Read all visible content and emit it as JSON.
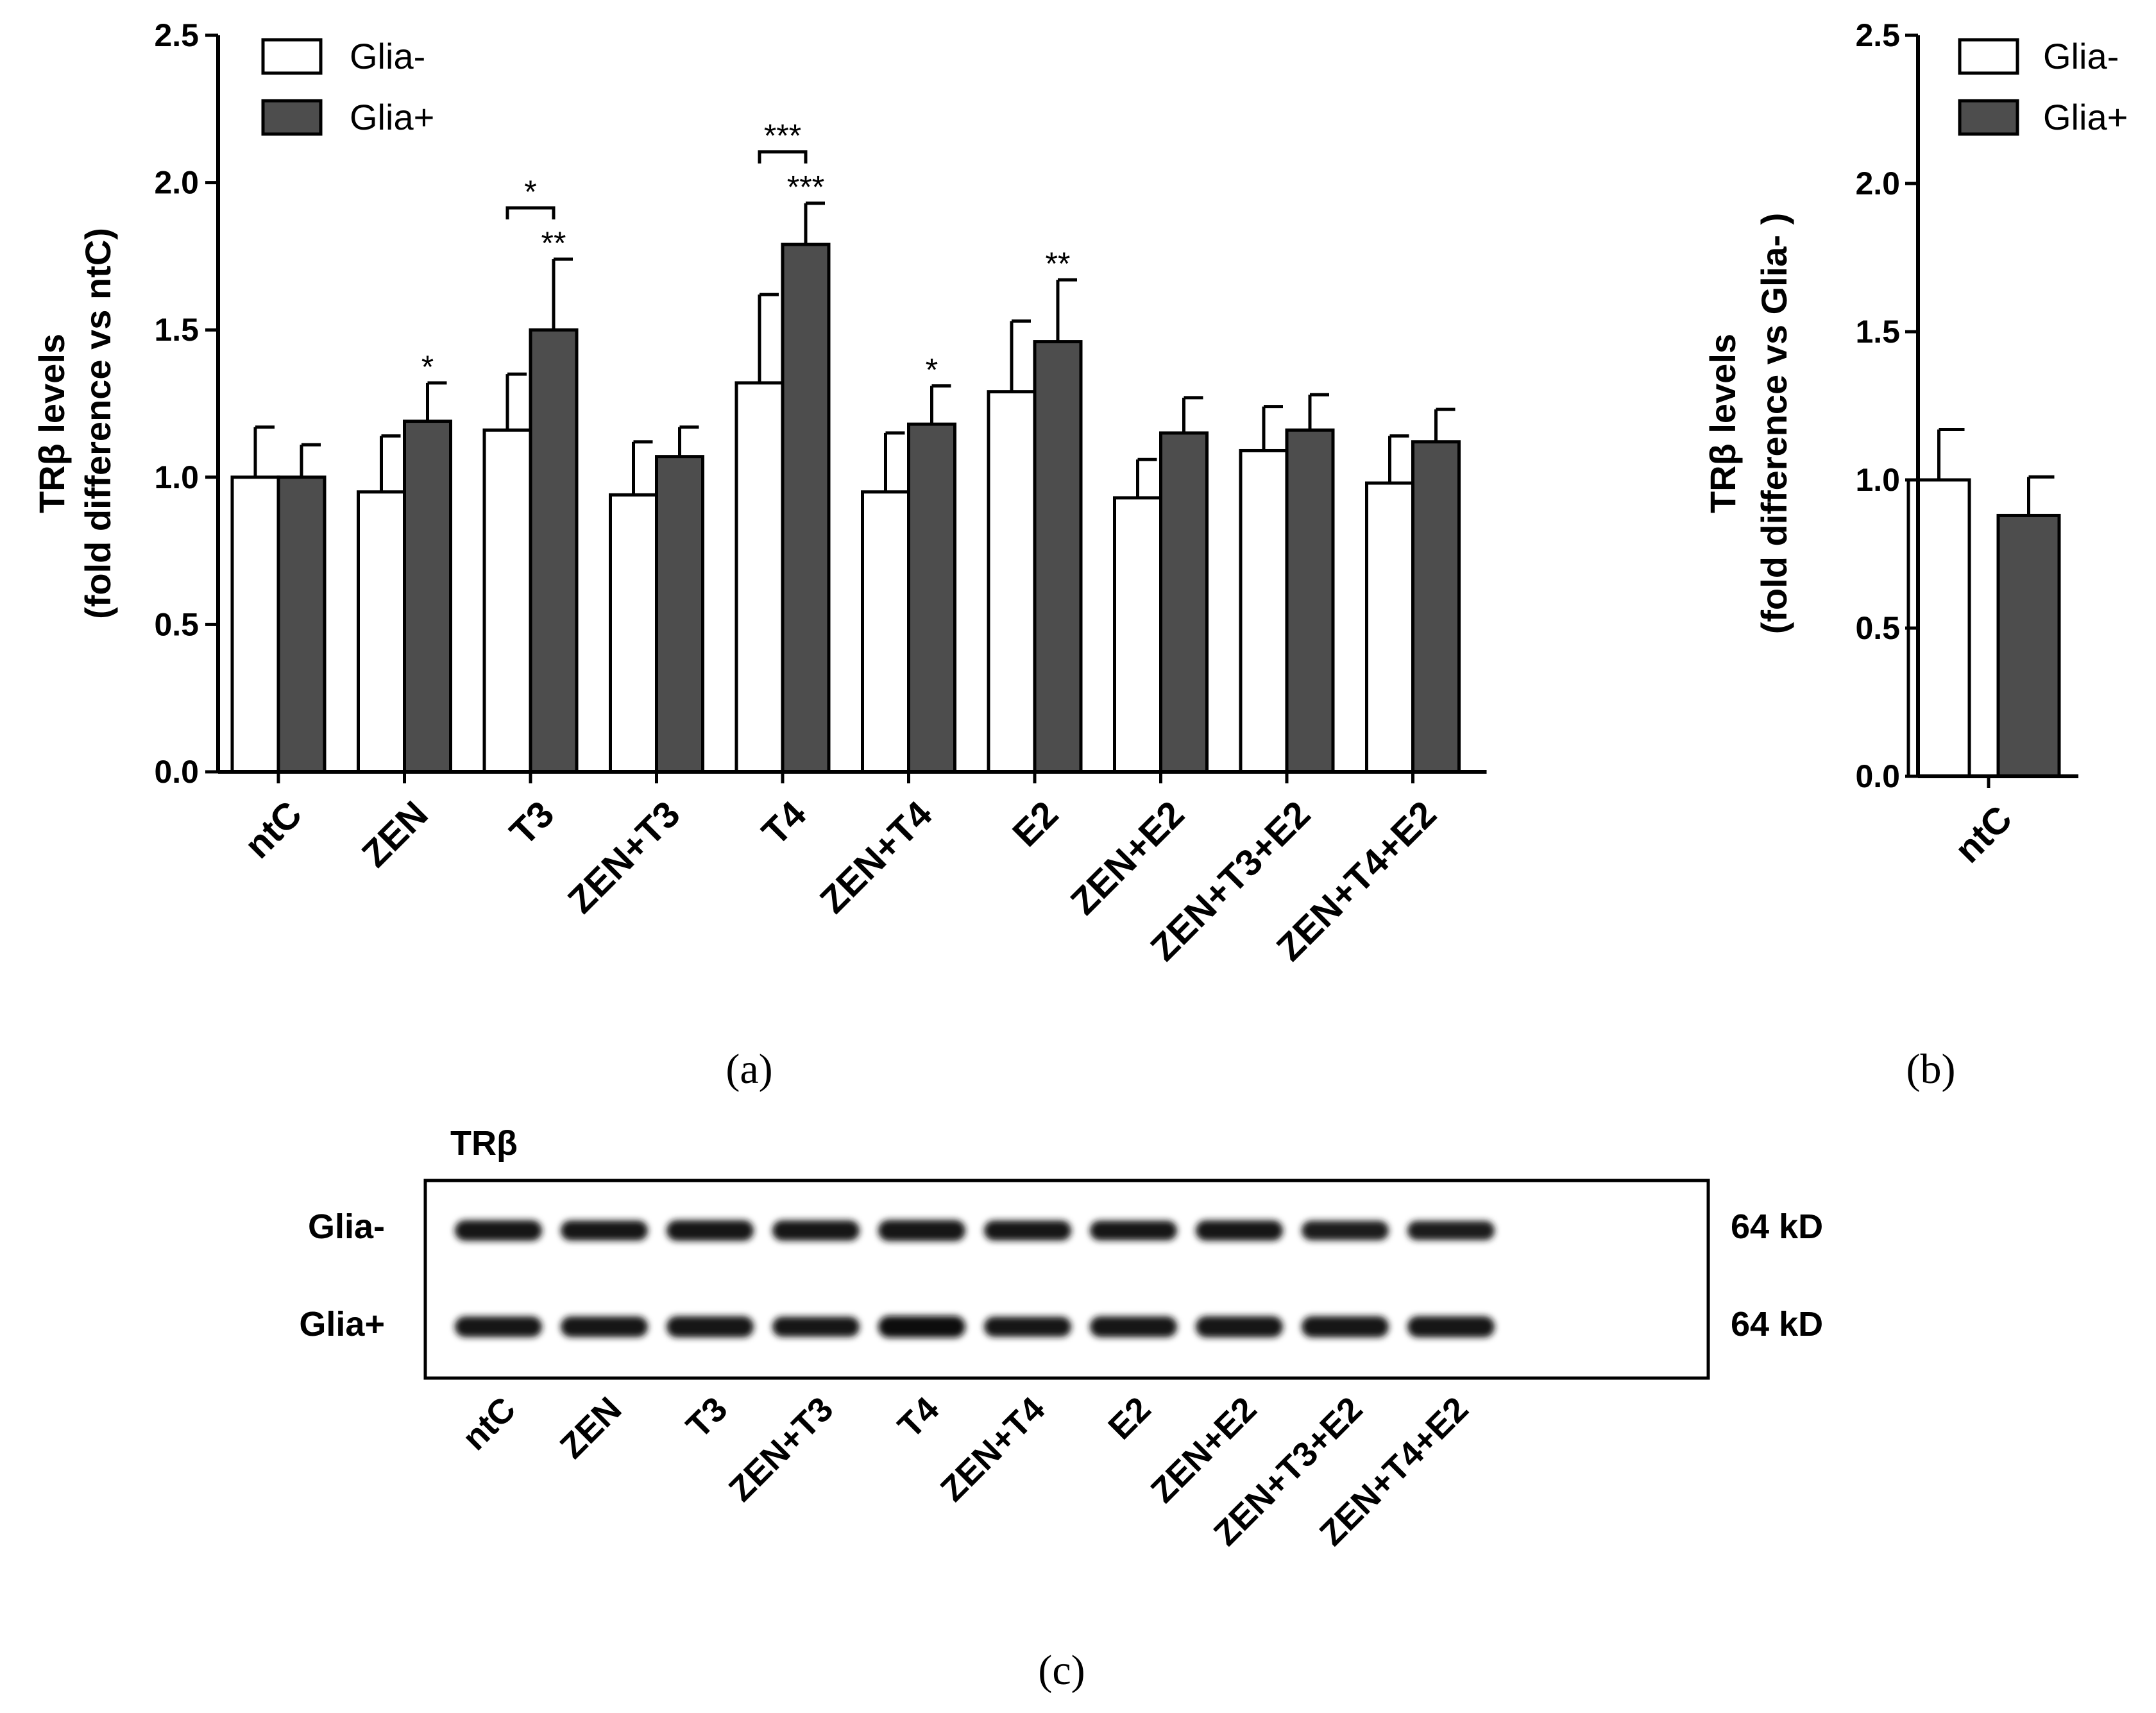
{
  "chart_data": [
    {
      "type": "bar",
      "panel": "a",
      "ylabel_line1": "TRβ levels",
      "ylabel_line2": "(fold difference vs ntC)",
      "ylim": [
        0,
        2.5
      ],
      "yticks": [
        "0.0",
        "0.5",
        "1.0",
        "1.5",
        "2.0",
        "2.5"
      ],
      "categories": [
        "ntC",
        "ZEN",
        "T3",
        "ZEN+T3",
        "T4",
        "ZEN+T4",
        "E2",
        "ZEN+E2",
        "ZEN+T3+E2",
        "ZEN+T4+E2"
      ],
      "series": [
        {
          "name": "Glia-",
          "color": "#ffffff",
          "values": [
            1.0,
            0.95,
            1.16,
            0.94,
            1.32,
            0.95,
            1.29,
            0.93,
            1.09,
            0.98
          ],
          "errors": [
            0.17,
            0.19,
            0.19,
            0.18,
            0.3,
            0.2,
            0.24,
            0.13,
            0.15,
            0.16
          ]
        },
        {
          "name": "Glia+",
          "color": "#4d4d4d",
          "values": [
            1.0,
            1.19,
            1.5,
            1.07,
            1.79,
            1.18,
            1.46,
            1.15,
            1.16,
            1.12
          ],
          "errors": [
            0.11,
            0.13,
            0.24,
            0.1,
            0.14,
            0.13,
            0.21,
            0.12,
            0.12,
            0.11
          ]
        }
      ],
      "significance_above_bars": [
        {
          "category": "ZEN",
          "text": "*"
        },
        {
          "category": "T3",
          "text": "**"
        },
        {
          "category": "T4",
          "text": "***"
        },
        {
          "category": "ZEN+T4",
          "text": "*"
        },
        {
          "category": "E2",
          "text": "**"
        }
      ],
      "brackets": [
        {
          "category": "T3",
          "text": "*"
        },
        {
          "category": "T4",
          "text": "***"
        }
      ],
      "legend": [
        "Glia-",
        "Glia+"
      ],
      "legend_location": "top-left"
    },
    {
      "type": "bar",
      "panel": "b",
      "ylabel_line1": "TRβ levels",
      "ylabel_line2": "(fold difference vs Glia- )",
      "ylim": [
        0,
        2.5
      ],
      "yticks": [
        "0.0",
        "0.5",
        "1.0",
        "1.5",
        "2.0",
        "2.5"
      ],
      "categories": [
        "ntC"
      ],
      "series": [
        {
          "name": "Glia-",
          "color": "#ffffff",
          "values": [
            1.0
          ],
          "errors": [
            0.17
          ]
        },
        {
          "name": "Glia+",
          "color": "#4d4d4d",
          "values": [
            0.88
          ],
          "errors": [
            0.13
          ]
        }
      ],
      "legend": [
        "Glia-",
        "Glia+"
      ],
      "legend_location": "top-right"
    }
  ],
  "panel_letters": [
    "(a)",
    "(b)",
    "(c)"
  ],
  "blot": {
    "protein": "TRβ",
    "rows": [
      {
        "label": "Glia-",
        "size": "64 kD",
        "intensity": [
          0.9,
          0.85,
          0.9,
          0.88,
          0.95,
          0.85,
          0.82,
          0.88,
          0.8,
          0.78
        ]
      },
      {
        "label": "Glia+",
        "size": "64 kD",
        "intensity": [
          0.9,
          0.9,
          0.95,
          0.85,
          1.0,
          0.85,
          0.92,
          0.95,
          0.95,
          0.95
        ]
      }
    ],
    "lanes": [
      "ntC",
      "ZEN",
      "T3",
      "ZEN+T3",
      "T4",
      "ZEN+T4",
      "E2",
      "ZEN+E2",
      "ZEN+T3+E2",
      "ZEN+T4+E2"
    ]
  }
}
